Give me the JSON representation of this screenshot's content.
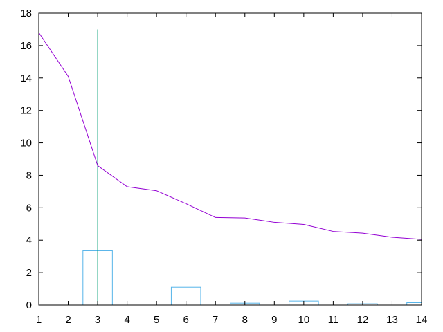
{
  "chart_data": {
    "type": "line",
    "title": "",
    "xlabel": "",
    "ylabel": "",
    "xlim": [
      1,
      14
    ],
    "ylim": [
      0,
      18
    ],
    "x_ticks": [
      1,
      2,
      3,
      4,
      5,
      6,
      7,
      8,
      9,
      10,
      11,
      12,
      13,
      14
    ],
    "y_ticks": [
      0,
      2,
      4,
      6,
      8,
      10,
      12,
      14,
      16,
      18
    ],
    "grid": false,
    "legend": "none",
    "series": [
      {
        "type": "line",
        "color": "#9400d3",
        "x": [
          1,
          2,
          3,
          4,
          5,
          6,
          7,
          8,
          9,
          10,
          11,
          12,
          13,
          14
        ],
        "y": [
          16.8,
          14.1,
          8.6,
          7.3,
          7.05,
          6.25,
          5.4,
          5.37,
          5.1,
          4.97,
          4.54,
          4.43,
          4.18,
          4.05
        ]
      },
      {
        "type": "bar",
        "color": "#56b4e9",
        "bar_width": 1,
        "x": [
          3,
          6,
          8,
          10,
          12,
          14
        ],
        "y": [
          3.35,
          1.1,
          0.12,
          0.25,
          0.08,
          0.15
        ]
      },
      {
        "type": "vline",
        "color": "#009e73",
        "x": 3,
        "y": [
          0,
          17
        ]
      }
    ]
  }
}
